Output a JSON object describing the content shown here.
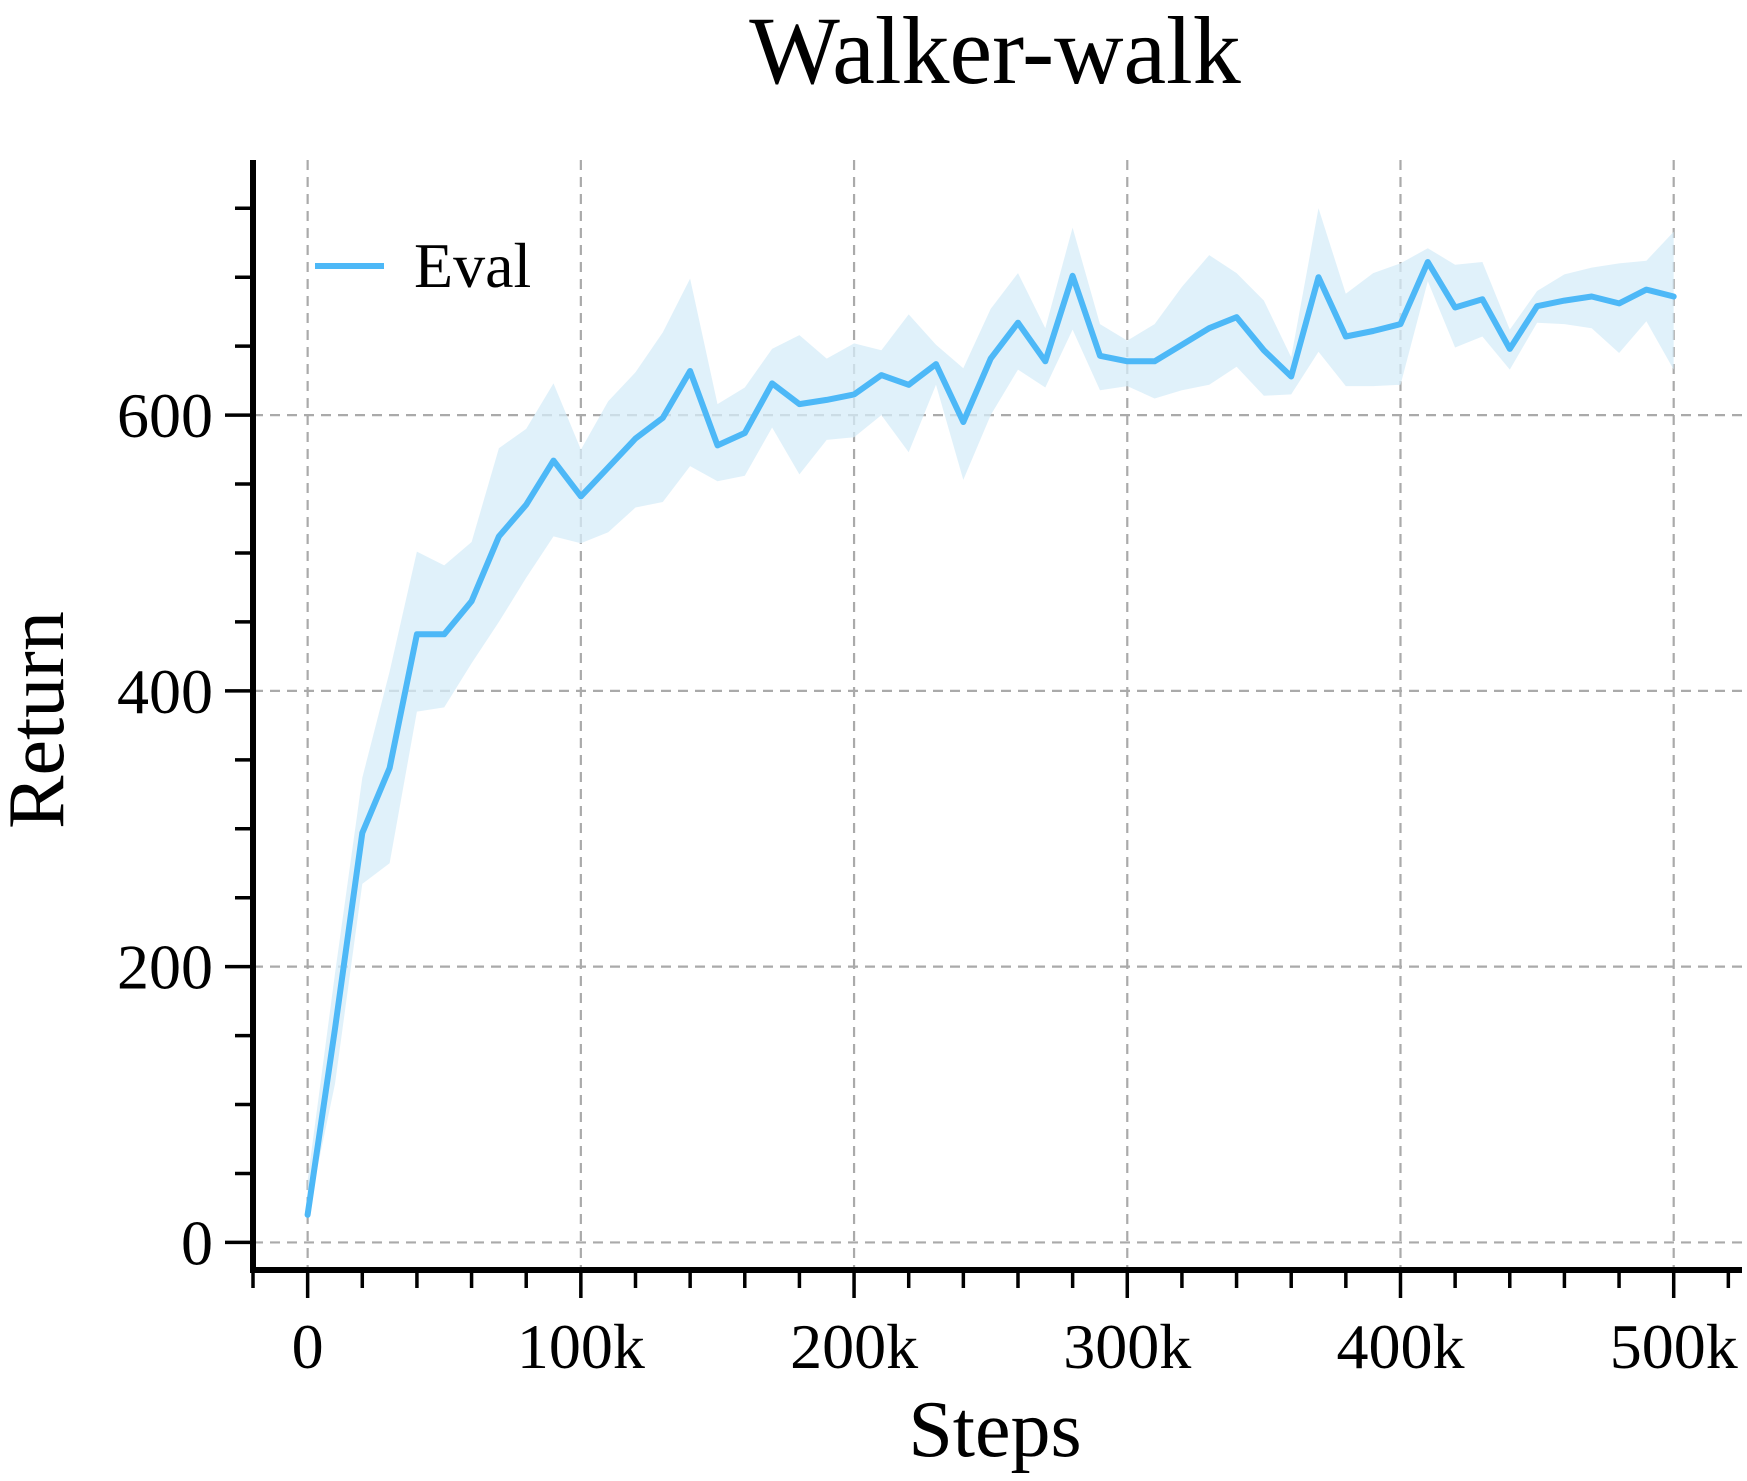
{
  "chart_data": {
    "type": "line",
    "title": "Walker-walk",
    "xlabel": "Steps",
    "ylabel": "Return",
    "xlim": [
      -20000,
      525000
    ],
    "ylim": [
      -20,
      785
    ],
    "xticks": [
      0,
      100000,
      200000,
      300000,
      400000,
      500000
    ],
    "xtick_labels": [
      "0",
      "100k",
      "200k",
      "300k",
      "400k",
      "500k"
    ],
    "x_minor_step": 20000,
    "yticks": [
      0,
      200,
      400,
      600
    ],
    "ytick_labels": [
      "0",
      "200",
      "400",
      "600"
    ],
    "y_minor_step": 50,
    "grid": true,
    "legend": {
      "position": "upper-left"
    },
    "colors": {
      "line": "#4db8f7",
      "band": "#d6ecf8"
    },
    "series": [
      {
        "name": "Eval",
        "x": [
          0,
          10000,
          20000,
          30000,
          40000,
          50000,
          60000,
          70000,
          80000,
          90000,
          100000,
          110000,
          120000,
          130000,
          140000,
          150000,
          160000,
          170000,
          180000,
          190000,
          200000,
          210000,
          220000,
          230000,
          240000,
          250000,
          260000,
          270000,
          280000,
          290000,
          300000,
          310000,
          320000,
          330000,
          340000,
          350000,
          360000,
          370000,
          380000,
          390000,
          400000,
          410000,
          420000,
          430000,
          440000,
          450000,
          460000,
          470000,
          480000,
          490000,
          500000
        ],
        "y": [
          20,
          155,
          297,
          344,
          441,
          441,
          465,
          512,
          535,
          567,
          541,
          562,
          583,
          598,
          632,
          578,
          587,
          623,
          608,
          611,
          615,
          629,
          622,
          637,
          595,
          641,
          667,
          639,
          701,
          643,
          639,
          639,
          651,
          663,
          671,
          647,
          628,
          700,
          657,
          661,
          666,
          711,
          678,
          684,
          648,
          679,
          683,
          686,
          681,
          691,
          686
        ],
        "y_lower": [
          20,
          115,
          260,
          275,
          385,
          388,
          420,
          450,
          482,
          512,
          507,
          515,
          533,
          537,
          563,
          552,
          556,
          591,
          557,
          582,
          584,
          600,
          573,
          622,
          553,
          600,
          633,
          620,
          662,
          618,
          621,
          612,
          618,
          622,
          635,
          614,
          615,
          646,
          621,
          621,
          622,
          697,
          649,
          657,
          633,
          667,
          666,
          663,
          645,
          668,
          633
        ],
        "y_upper": [
          45,
          195,
          337,
          414,
          501,
          491,
          508,
          576,
          590,
          623,
          575,
          610,
          631,
          660,
          699,
          608,
          620,
          648,
          658,
          641,
          652,
          647,
          673,
          651,
          634,
          677,
          703,
          663,
          736,
          666,
          654,
          666,
          693,
          716,
          703,
          683,
          642,
          750,
          688,
          703,
          710,
          721,
          709,
          711,
          662,
          690,
          702,
          707,
          710,
          712,
          733
        ]
      }
    ]
  }
}
